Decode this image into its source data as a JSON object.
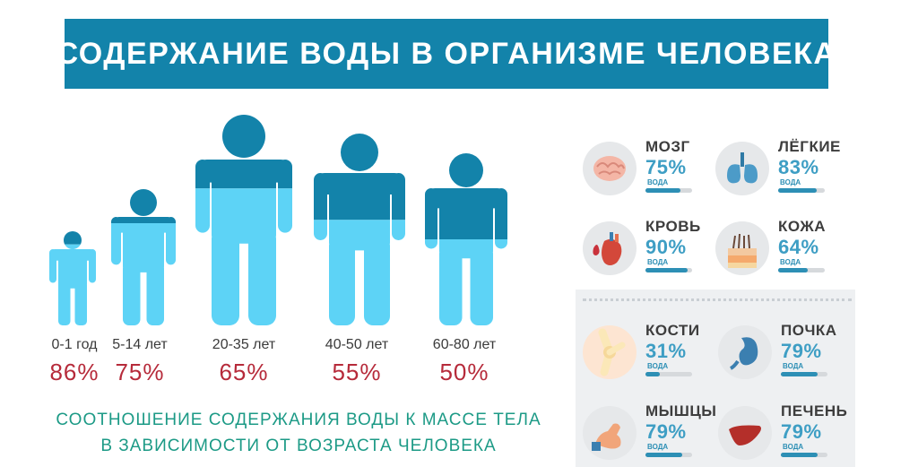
{
  "title": "СОДЕРЖАНИЕ ВОДЫ В ОРГАНИЗМЕ ЧЕЛОВЕКА",
  "colors": {
    "title_bg": "#1383aa",
    "body_dark": "#1383aa",
    "body_light": "#5dd3f6",
    "percent": "#b62a3a",
    "caption": "#1c9a86",
    "organ_value": "#3e9ec4"
  },
  "age_groups": [
    {
      "age": "0-1 год",
      "percent": "86%",
      "water": 86
    },
    {
      "age": "5-14 лет",
      "percent": "75%",
      "water": 75
    },
    {
      "age": "20-35 лет",
      "percent": "65%",
      "water": 65
    },
    {
      "age": "40-50 лет",
      "percent": "55%",
      "water": 55
    },
    {
      "age": "60-80 лет",
      "percent": "50%",
      "water": 50
    }
  ],
  "caption": {
    "line1": "СООТНОШЕНИЕ СОДЕРЖАНИЯ ВОДЫ К МАССЕ ТЕЛА",
    "line2": "В ЗАВИСИМОСТИ ОТ ВОЗРАСТА ЧЕЛОВЕКА"
  },
  "organs": [
    {
      "name": "МОЗГ",
      "value": "75%",
      "water": 75,
      "label": "ВОДА",
      "icon": "brain-icon"
    },
    {
      "name": "ЛЁГКИЕ",
      "value": "83%",
      "water": 83,
      "label": "ВОДА",
      "icon": "lungs-icon"
    },
    {
      "name": "КРОВЬ",
      "value": "90%",
      "water": 90,
      "label": "ВОДА",
      "icon": "heart-blood-icon"
    },
    {
      "name": "КОЖА",
      "value": "64%",
      "water": 64,
      "label": "ВОДА",
      "icon": "skin-icon"
    },
    {
      "name": "КОСТИ",
      "value": "31%",
      "water": 31,
      "label": "ВОДА",
      "icon": "bones-icon"
    },
    {
      "name": "ПОЧКА",
      "value": "79%",
      "water": 79,
      "label": "ВОДА",
      "icon": "kidney-icon"
    },
    {
      "name": "МЫШЦЫ",
      "value": "79%",
      "water": 79,
      "label": "ВОДА",
      "icon": "muscle-icon"
    },
    {
      "name": "ПЕЧЕНЬ",
      "value": "79%",
      "water": 79,
      "label": "ВОДА",
      "icon": "liver-icon"
    }
  ]
}
